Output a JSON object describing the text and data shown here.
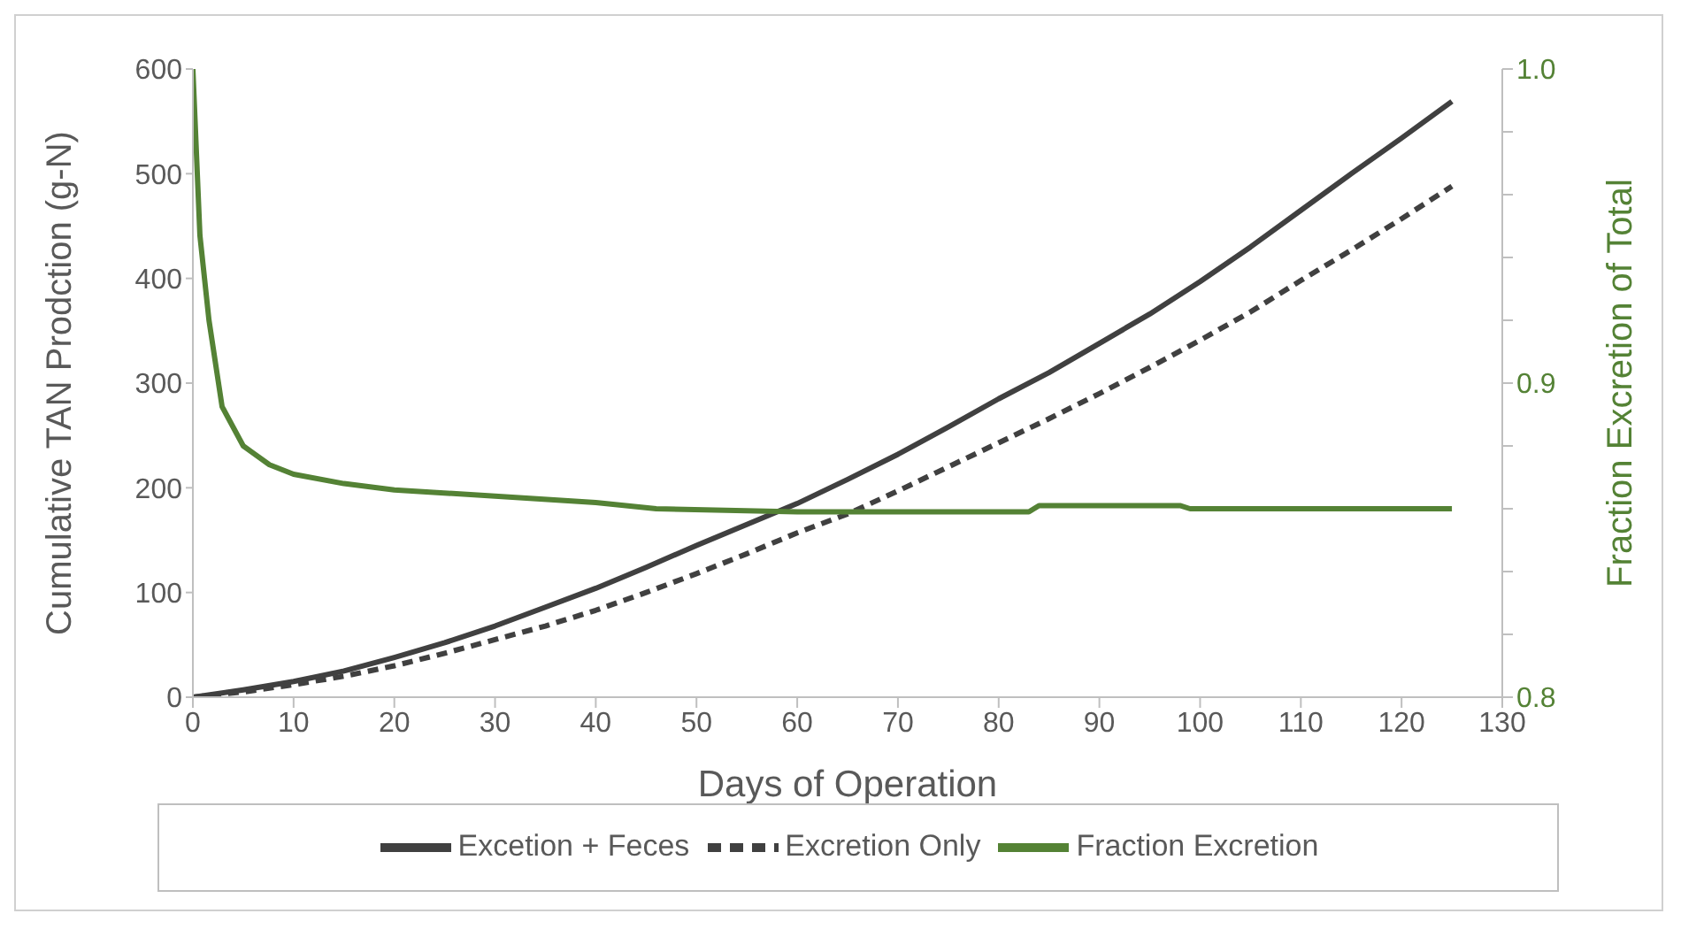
{
  "chart_data": {
    "type": "line",
    "xlabel": "Days of Operation",
    "ylabel": "Cumulative TAN Prodction (g-N)",
    "y2label": "Fraction Excretion of Total",
    "xlim": [
      0,
      130
    ],
    "xticks": [
      0,
      10,
      20,
      30,
      40,
      50,
      60,
      70,
      80,
      90,
      100,
      110,
      120,
      130
    ],
    "ylim": [
      0,
      600
    ],
    "yticks": [
      0,
      100,
      200,
      300,
      400,
      500,
      600
    ],
    "y2lim": [
      0.8,
      1.0
    ],
    "y2ticks": [
      {
        "value": 0.8,
        "label": "0.8"
      },
      {
        "value": 0.82,
        "label": null
      },
      {
        "value": 0.84,
        "label": null
      },
      {
        "value": 0.86,
        "label": null
      },
      {
        "value": 0.88,
        "label": null
      },
      {
        "value": 0.9,
        "label": "0.9"
      },
      {
        "value": 0.92,
        "label": null
      },
      {
        "value": 0.94,
        "label": null
      },
      {
        "value": 0.96,
        "label": null
      },
      {
        "value": 0.98,
        "label": null
      },
      {
        "value": 1.0,
        "label": "1.0"
      }
    ],
    "grid": false,
    "legend": "bottom",
    "marker": "none",
    "series": [
      {
        "name": "Excetion + Feces",
        "color": "#404040",
        "line_style": "solid",
        "x": [
          0,
          5,
          10,
          15,
          20,
          25,
          30,
          35,
          40,
          45,
          50,
          55,
          60,
          65,
          70,
          75,
          80,
          85,
          90,
          95,
          100,
          105,
          110,
          115,
          120,
          125
        ],
        "values": [
          0,
          7,
          15,
          25,
          38,
          52,
          68,
          86,
          104,
          124,
          145,
          165,
          185,
          208,
          232,
          258,
          285,
          310,
          338,
          366,
          397,
          430,
          465,
          500,
          534,
          569
        ]
      },
      {
        "name": "Excretion Only",
        "color": "#404040",
        "line_style": "dashed",
        "x": [
          0,
          5,
          10,
          15,
          20,
          25,
          30,
          35,
          40,
          45,
          50,
          55,
          60,
          65,
          70,
          75,
          80,
          85,
          90,
          95,
          100,
          105,
          110,
          115,
          120,
          125
        ],
        "values": [
          0,
          5,
          12,
          20,
          30,
          42,
          55,
          68,
          83,
          100,
          118,
          137,
          157,
          175,
          197,
          220,
          243,
          266,
          290,
          315,
          341,
          368,
          398,
          427,
          457,
          488
        ]
      },
      {
        "name": "Fraction Excretion",
        "color": "#548235",
        "line_style": "solid",
        "axis": "y2",
        "x": [
          0,
          0.7,
          1.6,
          2.9,
          5,
          7.6,
          10,
          15,
          20,
          30,
          40,
          46,
          60,
          83,
          84,
          98,
          99,
          125
        ],
        "values": [
          1.0,
          0.947,
          0.92,
          0.8925,
          0.88,
          0.874,
          0.871,
          0.868,
          0.866,
          0.864,
          0.862,
          0.86,
          0.859,
          0.859,
          0.861,
          0.861,
          0.86,
          0.86
        ]
      }
    ]
  }
}
